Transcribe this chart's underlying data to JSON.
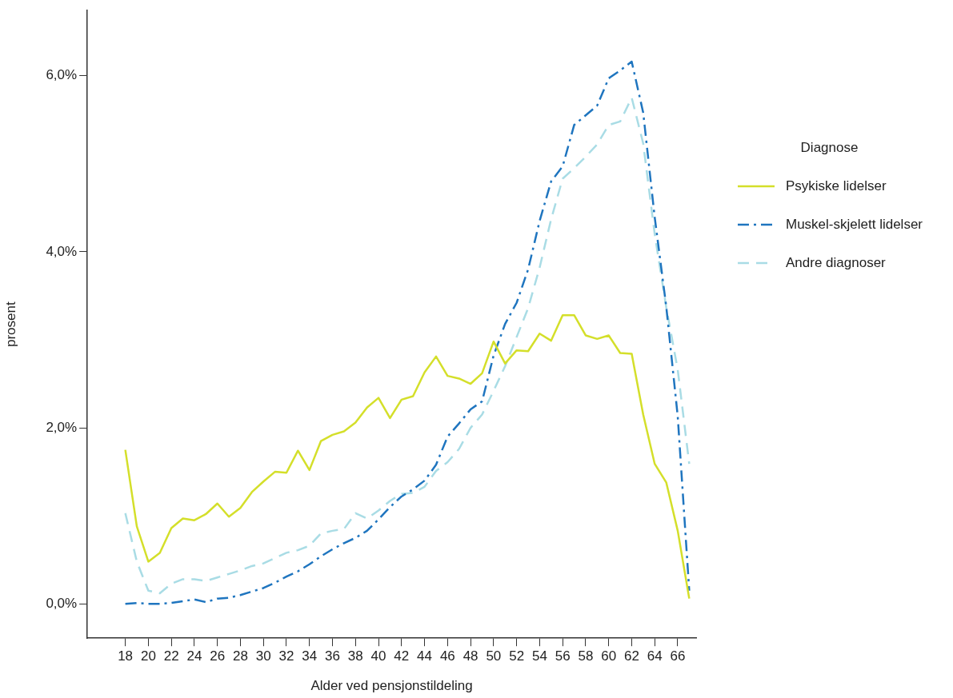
{
  "chart_data": {
    "type": "line",
    "xlabel": "Alder ved pensjonstildeling",
    "ylabel": "prosent",
    "legend_title": "Diagnose",
    "legend": "right",
    "grid": false,
    "marker": "none",
    "x": [
      18,
      19,
      20,
      21,
      22,
      23,
      24,
      25,
      26,
      27,
      28,
      29,
      30,
      31,
      32,
      33,
      34,
      35,
      36,
      37,
      38,
      39,
      40,
      41,
      42,
      43,
      44,
      45,
      46,
      47,
      48,
      49,
      50,
      51,
      52,
      53,
      54,
      55,
      56,
      57,
      58,
      59,
      60,
      61,
      62,
      63,
      64,
      65,
      66,
      67
    ],
    "xlim": [
      14.7,
      67.6
    ],
    "xticks": [
      18,
      20,
      22,
      24,
      26,
      28,
      30,
      32,
      34,
      36,
      38,
      40,
      42,
      44,
      46,
      48,
      50,
      52,
      54,
      56,
      58,
      60,
      62,
      64,
      66
    ],
    "ylim": [
      -0.39,
      6.74
    ],
    "yticks": [
      {
        "value": 0,
        "label": "0,0%"
      },
      {
        "value": 2,
        "label": "2,0%"
      },
      {
        "value": 4,
        "label": "4,0%"
      },
      {
        "value": 6,
        "label": "6,0%"
      }
    ],
    "series": [
      {
        "name": "Psykiske lidelser",
        "color": "#d4df2a",
        "line_style": "solid",
        "values": [
          1.75,
          0.88,
          0.48,
          0.58,
          0.86,
          0.97,
          0.95,
          1.02,
          1.14,
          0.99,
          1.09,
          1.27,
          1.39,
          1.5,
          1.49,
          1.74,
          1.52,
          1.85,
          1.92,
          1.96,
          2.06,
          2.23,
          2.34,
          2.11,
          2.32,
          2.36,
          2.63,
          2.81,
          2.59,
          2.56,
          2.5,
          2.62,
          2.98,
          2.73,
          2.88,
          2.87,
          3.07,
          2.99,
          3.28,
          3.28,
          3.05,
          3.01,
          3.05,
          2.85,
          2.84,
          2.15,
          1.59,
          1.38,
          0.83,
          0.06
        ]
      },
      {
        "name": "Muskel-skjelett lidelser",
        "color": "#1f75bf",
        "line_style": "dashdot",
        "values": [
          0,
          0.01,
          0,
          0,
          0.01,
          0.03,
          0.05,
          0.02,
          0.06,
          0.07,
          0.1,
          0.14,
          0.18,
          0.24,
          0.31,
          0.37,
          0.45,
          0.54,
          0.62,
          0.69,
          0.75,
          0.83,
          0.96,
          1.1,
          1.22,
          1.3,
          1.4,
          1.58,
          1.9,
          2.05,
          2.21,
          2.3,
          2.82,
          3.18,
          3.42,
          3.8,
          4.35,
          4.8,
          4.97,
          5.44,
          5.55,
          5.66,
          5.97,
          6.06,
          6.16,
          5.58,
          4.39,
          3.38,
          2.13,
          0.15
        ]
      },
      {
        "name": "Andre diagnoser",
        "color": "#a9dce5",
        "line_style": "dashed",
        "values": [
          1.03,
          0.48,
          0.15,
          0.12,
          0.23,
          0.28,
          0.28,
          0.26,
          0.3,
          0.34,
          0.38,
          0.43,
          0.46,
          0.52,
          0.58,
          0.61,
          0.66,
          0.8,
          0.83,
          0.85,
          1.03,
          0.97,
          1.06,
          1.17,
          1.25,
          1.26,
          1.33,
          1.51,
          1.61,
          1.76,
          2,
          2.15,
          2.42,
          2.7,
          3.03,
          3.36,
          3.82,
          4.37,
          4.83,
          4.95,
          5.08,
          5.22,
          5.44,
          5.48,
          5.75,
          5.23,
          4.2,
          3.37,
          2.66,
          1.59
        ]
      }
    ]
  }
}
